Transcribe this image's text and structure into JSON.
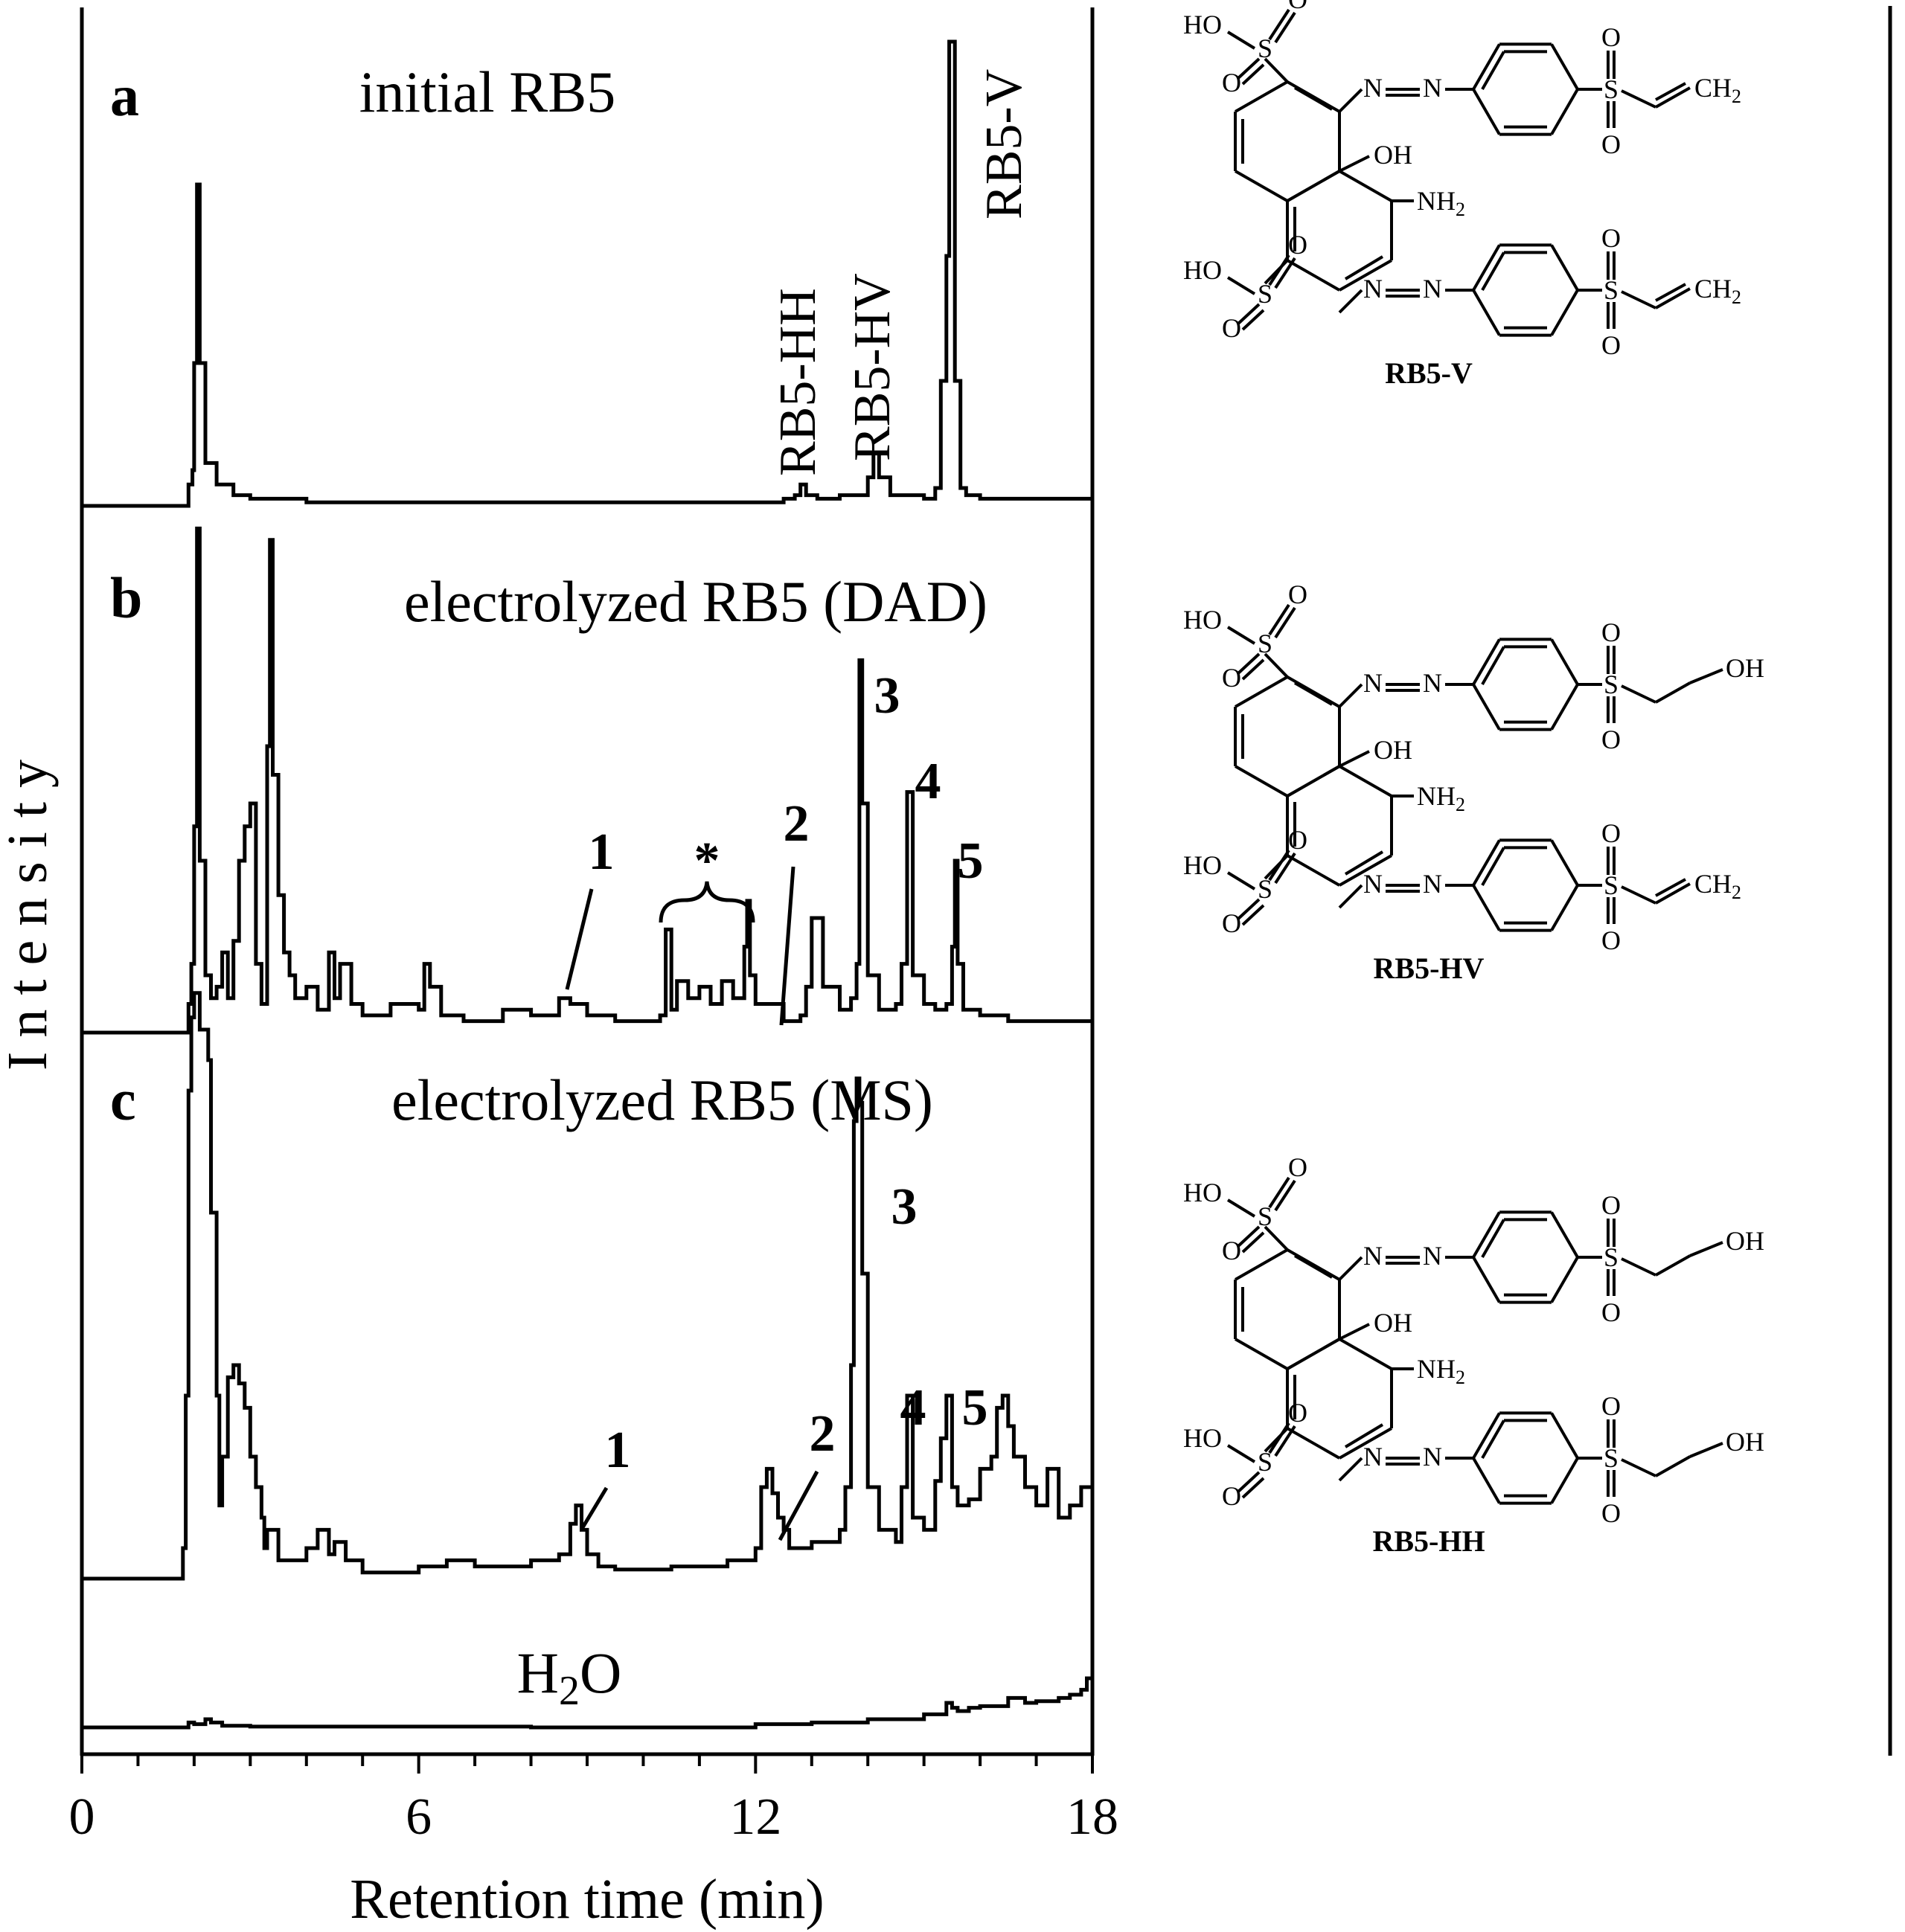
{
  "chart_data": {
    "type": "line",
    "xlabel": "Retention time (min)",
    "ylabel": "I n t e n s i t y",
    "xlim": [
      0,
      18
    ],
    "xticks": [
      0,
      6,
      12,
      18
    ],
    "panels": [
      {
        "letter": "a",
        "title": "initial RB5",
        "series": {
          "x": [
            0,
            1.85,
            1.9,
            1.97,
            2.0,
            2.05,
            2.1,
            2.2,
            2.4,
            2.7,
            3.0,
            4.0,
            12.5,
            12.7,
            12.8,
            12.9,
            13.1,
            13.5,
            14.0,
            14.1,
            14.2,
            14.4,
            15.0,
            15.2,
            15.3,
            15.4,
            15.45,
            15.55,
            15.65,
            15.75,
            16.0,
            17.0,
            18.0
          ],
          "y": [
            0,
            0,
            0.6,
            1.0,
            4.0,
            9.0,
            4.0,
            1.2,
            0.6,
            0.3,
            0.2,
            0.1,
            0.2,
            0.3,
            0.6,
            0.3,
            0.2,
            0.3,
            0.8,
            1.5,
            0.8,
            0.3,
            0.2,
            0.5,
            3.5,
            7.0,
            13.0,
            3.5,
            0.5,
            0.3,
            0.2,
            0.2,
            0.2
          ]
        },
        "peak_labels": [
          {
            "text": "RB5-HH",
            "x": 12.9
          },
          {
            "text": "RB5-HV",
            "x": 14.05
          },
          {
            "text": "RB5-V",
            "x": 15.45
          }
        ]
      },
      {
        "letter": "b",
        "title": "electrolyzed RB5 (DAD)",
        "series": {
          "x": [
            0,
            1.85,
            1.9,
            1.95,
            2.0,
            2.05,
            2.1,
            2.2,
            2.3,
            2.4,
            2.5,
            2.6,
            2.7,
            2.8,
            2.9,
            3.0,
            3.1,
            3.2,
            3.3,
            3.35,
            3.4,
            3.5,
            3.6,
            3.7,
            3.8,
            4.0,
            4.2,
            4.4,
            4.5,
            4.6,
            4.8,
            5.0,
            5.5,
            6.0,
            6.1,
            6.2,
            6.4,
            6.8,
            7.5,
            8.0,
            8.5,
            8.7,
            9.0,
            9.5,
            10.0,
            10.3,
            10.4,
            10.5,
            10.6,
            10.8,
            11.0,
            11.2,
            11.4,
            11.6,
            11.8,
            11.85,
            11.9,
            12.0,
            12.5,
            12.8,
            12.9,
            13.0,
            13.2,
            13.5,
            13.7,
            13.8,
            13.85,
            13.9,
            14.0,
            14.2,
            14.5,
            14.6,
            14.7,
            14.8,
            15.0,
            15.2,
            15.4,
            15.5,
            15.55,
            15.6,
            15.7,
            16.0,
            16.5,
            17.0,
            18.0
          ],
          "y": [
            0,
            0,
            0.5,
            1.2,
            3.6,
            8.8,
            3.0,
            1.0,
            0.6,
            0.8,
            1.4,
            0.6,
            1.6,
            3.0,
            3.6,
            4.0,
            1.2,
            0.5,
            5.0,
            8.6,
            4.5,
            2.4,
            1.4,
            1.0,
            0.6,
            0.8,
            0.4,
            1.4,
            0.6,
            1.2,
            0.5,
            0.3,
            0.5,
            0.4,
            1.2,
            0.8,
            0.3,
            0.2,
            0.4,
            0.3,
            0.6,
            0.5,
            0.3,
            0.2,
            0.2,
            0.3,
            1.8,
            0.4,
            0.9,
            0.6,
            0.8,
            0.5,
            0.9,
            0.6,
            1.5,
            2.3,
            1.0,
            0.5,
            0.2,
            0.3,
            0.8,
            2.0,
            0.8,
            0.4,
            0.6,
            1.2,
            6.5,
            4.0,
            1.0,
            0.4,
            0.5,
            1.2,
            4.2,
            1.0,
            0.5,
            0.4,
            0.5,
            1.5,
            3.0,
            1.2,
            0.4,
            0.3,
            0.2,
            0.2,
            0.2
          ]
        },
        "peak_labels": [
          {
            "text": "1",
            "x": 8.6
          },
          {
            "text": "*",
            "x": 11.1
          },
          {
            "text": "2",
            "x": 12.4
          },
          {
            "text": "3",
            "x": 13.88
          },
          {
            "text": "4",
            "x": 14.65
          },
          {
            "text": "5",
            "x": 15.5
          }
        ]
      },
      {
        "letter": "c",
        "title": "electrolyzed RB5 (MS)",
        "series": {
          "x": [
            0,
            1.75,
            1.8,
            1.85,
            1.9,
            1.95,
            2.0,
            2.1,
            2.2,
            2.25,
            2.3,
            2.4,
            2.45,
            2.5,
            2.6,
            2.7,
            2.8,
            2.9,
            3.0,
            3.1,
            3.2,
            3.25,
            3.3,
            3.5,
            4.0,
            4.2,
            4.4,
            4.5,
            4.7,
            5.0,
            6.0,
            6.5,
            7.0,
            8.0,
            8.5,
            8.7,
            8.8,
            8.9,
            9.0,
            9.2,
            9.5,
            10.5,
            11.5,
            12.0,
            12.1,
            12.2,
            12.3,
            12.4,
            12.5,
            12.6,
            13.0,
            13.5,
            13.6,
            13.7,
            13.75,
            13.8,
            13.85,
            13.9,
            14.0,
            14.2,
            14.5,
            14.6,
            14.7,
            14.8,
            15.0,
            15.2,
            15.3,
            15.4,
            15.5,
            15.6,
            15.8,
            16.0,
            16.2,
            16.3,
            16.4,
            16.5,
            16.6,
            16.8,
            17.0,
            17.2,
            17.4,
            17.6,
            17.8,
            18.0
          ],
          "y": [
            0,
            0,
            0.5,
            3.0,
            8.0,
            9.2,
            9.6,
            9.0,
            9.0,
            8.5,
            6.0,
            3.0,
            1.2,
            2.0,
            3.3,
            3.5,
            3.2,
            2.8,
            2.0,
            1.5,
            1.0,
            0.5,
            0.8,
            0.3,
            0.5,
            0.8,
            0.4,
            0.6,
            0.3,
            0.1,
            0.2,
            0.3,
            0.2,
            0.3,
            0.4,
            0.9,
            1.2,
            0.8,
            0.4,
            0.2,
            0.15,
            0.2,
            0.3,
            0.5,
            1.5,
            1.8,
            1.4,
            1.0,
            0.8,
            0.5,
            0.6,
            0.8,
            1.5,
            3.5,
            7.5,
            8.2,
            7.8,
            5.0,
            1.5,
            0.8,
            0.6,
            1.5,
            3.0,
            1.0,
            0.8,
            1.6,
            2.3,
            3.0,
            1.5,
            1.2,
            1.3,
            1.8,
            2.0,
            2.8,
            3.0,
            2.5,
            2.0,
            1.5,
            1.2,
            1.8,
            1.0,
            1.2,
            1.5,
            1.8
          ]
        },
        "peak_labels": [
          {
            "text": "1",
            "x": 8.8
          },
          {
            "text": "2",
            "x": 12.4
          },
          {
            "text": "3",
            "x": 13.82
          },
          {
            "text": "4",
            "x": 14.7
          },
          {
            "text": "5",
            "x": 15.5
          }
        ]
      },
      {
        "letter": "",
        "title": "H2O",
        "series": {
          "x": [
            0,
            1.8,
            1.9,
            2.0,
            2.2,
            2.3,
            2.5,
            3.0,
            8.0,
            10.0,
            12.0,
            13.0,
            14.0,
            15.0,
            15.4,
            15.5,
            15.6,
            15.8,
            16.0,
            16.5,
            16.8,
            17.0,
            17.4,
            17.6,
            17.8,
            17.9,
            18.0
          ],
          "y": [
            0,
            0,
            0.3,
            0.2,
            0.5,
            0.3,
            0.1,
            0.05,
            0,
            0,
            0.2,
            0.3,
            0.5,
            0.8,
            1.5,
            1.2,
            1.0,
            1.2,
            1.3,
            1.8,
            1.5,
            1.6,
            1.8,
            2.0,
            2.3,
            3.0,
            2.8
          ]
        },
        "peak_labels": []
      }
    ],
    "title": ""
  },
  "structures": [
    {
      "name": "RB5-V",
      "substituent_top": "vinyl",
      "substituent_bottom": "vinyl",
      "labels": {
        "ho": "HO",
        "o": "O",
        "s": "S",
        "n": "N",
        "oh": "OH",
        "nh2": "NH",
        "sub2": "2",
        "ch2": "CH",
        "oh_term": "OH"
      }
    },
    {
      "name": "RB5-HV",
      "substituent_top": "hydroxyethyl",
      "substituent_bottom": "vinyl",
      "labels": {
        "ho": "HO",
        "o": "O",
        "s": "S",
        "n": "N",
        "oh": "OH",
        "nh2": "NH",
        "sub2": "2",
        "ch2": "CH",
        "oh_term": "OH"
      }
    },
    {
      "name": "RB5-HH",
      "substituent_top": "hydroxyethyl",
      "substituent_bottom": "hydroxyethyl",
      "labels": {
        "ho": "HO",
        "o": "O",
        "s": "S",
        "n": "N",
        "oh": "OH",
        "nh2": "NH",
        "sub2": "2",
        "ch2": "CH",
        "oh_term": "OH"
      }
    }
  ]
}
